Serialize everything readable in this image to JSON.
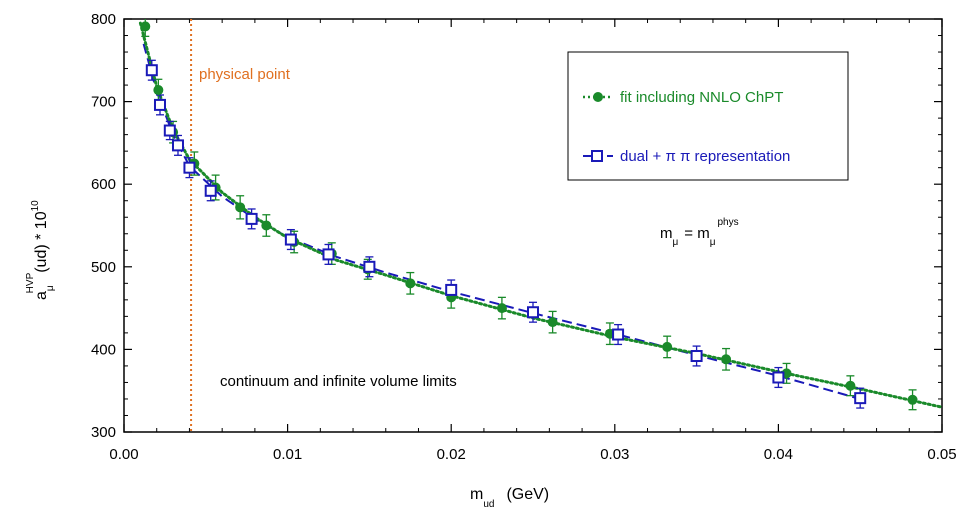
{
  "chart_data": {
    "type": "scatter",
    "xlabel": "m",
    "xlabel_sub": "ud",
    "xlabel_unit": "(GeV)",
    "ylabel_base": "a",
    "ylabel_sub": "μ",
    "ylabel_sup": "HVP",
    "ylabel_mid": "(ud) * 10",
    "ylabel_exp": "10",
    "xlim": [
      0,
      0.05
    ],
    "ylim": [
      300,
      800
    ],
    "x_ticks": [
      "0.00",
      "0.01",
      "0.02",
      "0.03",
      "0.04",
      "0.05"
    ],
    "y_ticks": [
      "300",
      "400",
      "500",
      "600",
      "700",
      "800"
    ],
    "physical_point": {
      "x": 0.0041,
      "label": "physical point",
      "color": "#e07020"
    },
    "annotations": {
      "mmu_m": "m",
      "mmu_sub": "μ",
      "mmu_eq": "= m",
      "mmu_sub2": "μ",
      "mmu_sup": "phys",
      "limits": "continuum and infinite volume limits"
    },
    "legend_position": "top-right",
    "series": [
      {
        "name": "fit including NNLO ChPT",
        "color": "#1a8a2a",
        "marker": "filled-circle",
        "line": "dotted",
        "points": [
          {
            "x": 0.0013,
            "y": 791,
            "err": 12
          },
          {
            "x": 0.0021,
            "y": 714,
            "err": 13
          },
          {
            "x": 0.003,
            "y": 663,
            "err": 13
          },
          {
            "x": 0.0043,
            "y": 625,
            "err": 14
          },
          {
            "x": 0.0056,
            "y": 596,
            "err": 15
          },
          {
            "x": 0.0071,
            "y": 572,
            "err": 14
          },
          {
            "x": 0.0087,
            "y": 550,
            "err": 13
          },
          {
            "x": 0.0104,
            "y": 530,
            "err": 13
          },
          {
            "x": 0.0127,
            "y": 516,
            "err": 13
          },
          {
            "x": 0.0149,
            "y": 497,
            "err": 12
          },
          {
            "x": 0.0175,
            "y": 480,
            "err": 13
          },
          {
            "x": 0.02,
            "y": 463,
            "err": 13
          },
          {
            "x": 0.0231,
            "y": 450,
            "err": 13
          },
          {
            "x": 0.0262,
            "y": 433,
            "err": 13
          },
          {
            "x": 0.0297,
            "y": 419,
            "err": 13
          },
          {
            "x": 0.0332,
            "y": 403,
            "err": 13
          },
          {
            "x": 0.0368,
            "y": 388,
            "err": 13
          },
          {
            "x": 0.0405,
            "y": 371,
            "err": 12
          },
          {
            "x": 0.0444,
            "y": 356,
            "err": 12
          },
          {
            "x": 0.0482,
            "y": 339,
            "err": 12
          }
        ],
        "curve": [
          [
            0.001,
            795
          ],
          [
            0.002,
            718
          ],
          [
            0.003,
            666
          ],
          [
            0.004,
            630
          ],
          [
            0.006,
            590
          ],
          [
            0.008,
            560
          ],
          [
            0.01,
            535
          ],
          [
            0.013,
            508
          ],
          [
            0.016,
            490
          ],
          [
            0.02,
            465
          ],
          [
            0.025,
            438
          ],
          [
            0.03,
            415
          ],
          [
            0.035,
            395
          ],
          [
            0.04,
            373
          ],
          [
            0.045,
            352
          ],
          [
            0.05,
            330
          ]
        ]
      },
      {
        "name": "dual + π π representation",
        "color": "#1a1ab8",
        "marker": "open-square",
        "line": "dashed",
        "points": [
          {
            "x": 0.0017,
            "y": 738,
            "err": 12
          },
          {
            "x": 0.0022,
            "y": 696,
            "err": 12
          },
          {
            "x": 0.0028,
            "y": 665,
            "err": 11
          },
          {
            "x": 0.0033,
            "y": 647,
            "err": 12
          },
          {
            "x": 0.004,
            "y": 620,
            "err": 12
          },
          {
            "x": 0.0053,
            "y": 592,
            "err": 12
          },
          {
            "x": 0.0078,
            "y": 558,
            "err": 12
          },
          {
            "x": 0.0102,
            "y": 533,
            "err": 12
          },
          {
            "x": 0.0125,
            "y": 515,
            "err": 12
          },
          {
            "x": 0.015,
            "y": 500,
            "err": 12
          },
          {
            "x": 0.02,
            "y": 472,
            "err": 12
          },
          {
            "x": 0.025,
            "y": 445,
            "err": 12
          },
          {
            "x": 0.0302,
            "y": 418,
            "err": 12
          },
          {
            "x": 0.035,
            "y": 392,
            "err": 12
          },
          {
            "x": 0.04,
            "y": 366,
            "err": 12
          },
          {
            "x": 0.045,
            "y": 341,
            "err": 12
          }
        ],
        "curve": [
          [
            0.0012,
            770
          ],
          [
            0.002,
            712
          ],
          [
            0.003,
            660
          ],
          [
            0.004,
            622
          ],
          [
            0.006,
            585
          ],
          [
            0.008,
            558
          ],
          [
            0.01,
            536
          ],
          [
            0.013,
            512
          ],
          [
            0.016,
            493
          ],
          [
            0.02,
            470
          ],
          [
            0.025,
            444
          ],
          [
            0.03,
            419
          ],
          [
            0.035,
            393
          ],
          [
            0.04,
            368
          ],
          [
            0.045,
            340
          ]
        ]
      }
    ]
  }
}
